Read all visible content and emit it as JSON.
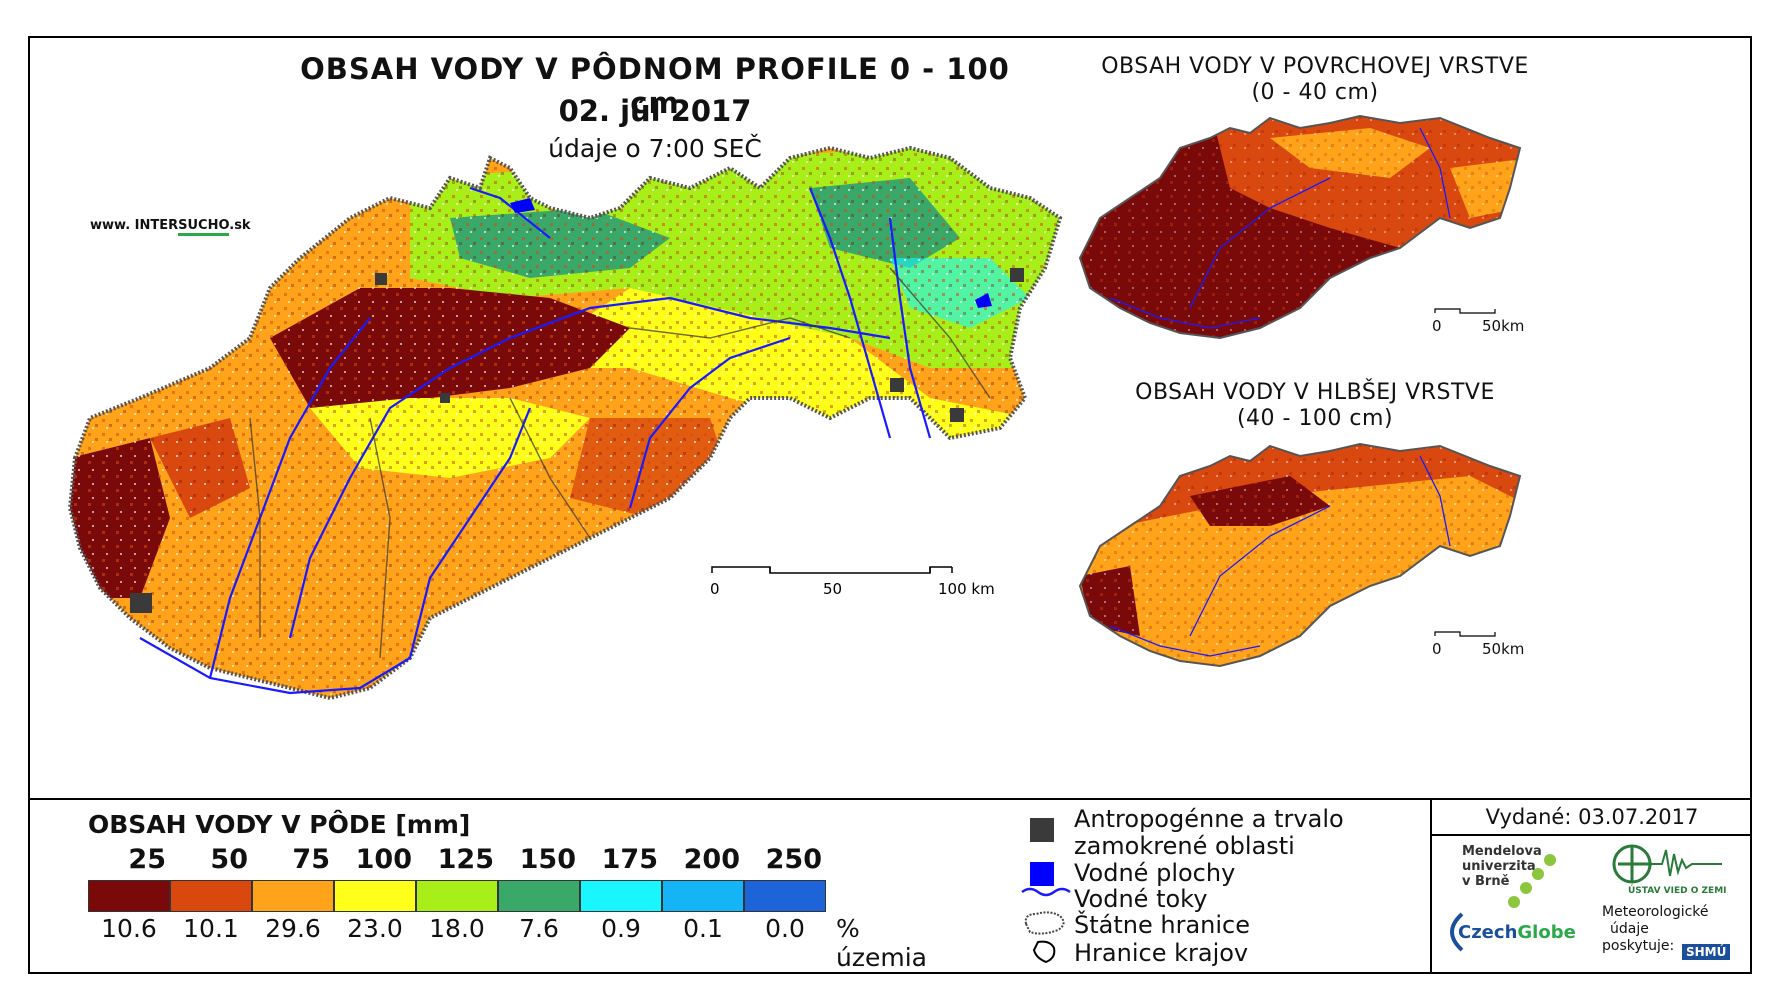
{
  "main_title": "OBSAH VODY V PÔDNOM PROFILE 0 - 100 cm",
  "date": "02. júl 2017",
  "data_time": "údaje o 7:00 SEČ",
  "website": {
    "prefix": "www. INTER",
    "highlight": "SUCHO",
    "suffix": ".sk"
  },
  "inset_top": {
    "title": "OBSAH VODY V POVRCHOVEJ VRSTVE",
    "subtitle": "(0 - 40 cm)",
    "scale": {
      "start": "0",
      "end": "50km"
    }
  },
  "inset_bottom": {
    "title": "OBSAH VODY V HLBŠEJ VRSTVE",
    "subtitle": "(40 - 100 cm)",
    "scale": {
      "start": "0",
      "end": "50km"
    }
  },
  "main_scale": {
    "start": "0",
    "mid": "50",
    "end": "100 km"
  },
  "legend": {
    "title": "OBSAH VODY V PÔDE [mm]",
    "bins": [
      "25",
      "50",
      "75",
      "100",
      "125",
      "150",
      "175",
      "200",
      "250"
    ],
    "colors": [
      "#7a0a0a",
      "#d9480f",
      "#ffa31a",
      "#ffff1a",
      "#a8ef1a",
      "#3aa868",
      "#19f6ff",
      "#15b4f5",
      "#1c64d8"
    ],
    "percentages": [
      "10.6",
      "10.1",
      "29.6",
      "23.0",
      "18.0",
      "7.6",
      "0.9",
      "0.1",
      "0.0"
    ],
    "pct_label": "% územia"
  },
  "symbols": {
    "anthropogenic_1": "Antropogénne a trvalo",
    "anthropogenic_2": "zamokrené oblasti",
    "water_bodies": "Vodné plochy",
    "streams": "Vodné toky",
    "state_border": "Štátne hranice",
    "region_border": "Hranice krajov",
    "colors": {
      "anthropogenic": "#3a3a3a",
      "water": "#0000ff",
      "stream": "#1a1aff"
    }
  },
  "issued": "Vydané: 03.07.2017",
  "logos": {
    "mendel_1": "Mendelova",
    "mendel_2": "univerzita",
    "mendel_3": "v Brně",
    "czechglobe_a": "Czech",
    "czechglobe_b": "Globe",
    "uvgz": "ÚSTAV VIED O ZEMI",
    "meteo_1": "Meteorologické",
    "meteo_2": "údaje",
    "meteo_3": "poskytuje:",
    "shmu": "SHMÚ"
  }
}
